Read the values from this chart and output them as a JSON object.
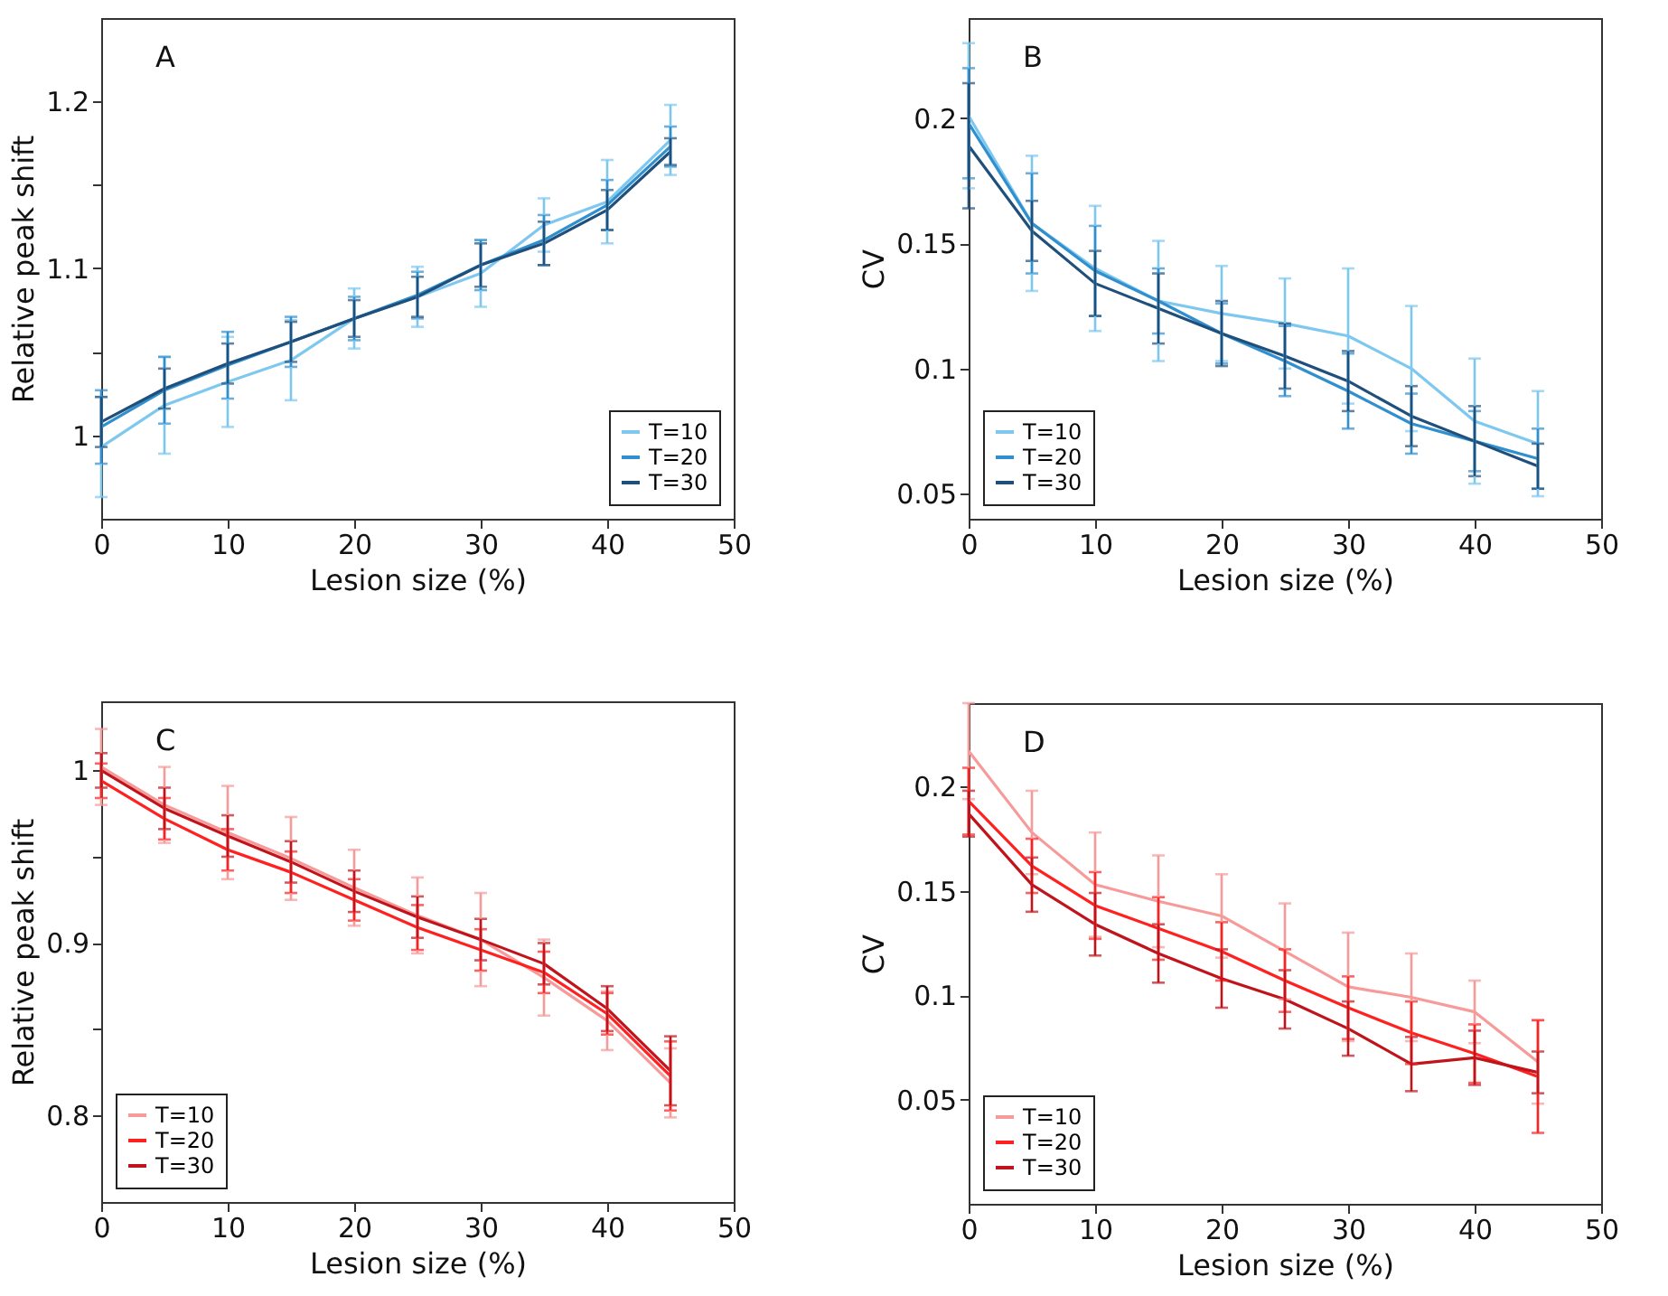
{
  "chart_data": [
    {
      "type": "line",
      "annotations": [
        "A"
      ],
      "xlabel": "Lesion size (%)",
      "ylabel": "Relative peak shift",
      "x": [
        0,
        5,
        10,
        15,
        20,
        25,
        30,
        35,
        40,
        45
      ],
      "xlim": [
        0,
        50
      ],
      "xticks": [
        0,
        10,
        20,
        30,
        40,
        50
      ],
      "ylim": [
        0.95,
        1.25
      ],
      "yticks": [
        1.0,
        {
          "value": 1.05,
          "label": null
        },
        1.1,
        {
          "value": 1.15,
          "label": null
        },
        1.2
      ],
      "grid": false,
      "legend": "bottom right",
      "marker": "none",
      "line_style": "solid",
      "series": [
        {
          "name": "T=10",
          "color": "#7ec8f0",
          "values": [
            0.993,
            1.018,
            1.032,
            1.045,
            1.07,
            1.083,
            1.097,
            1.126,
            1.14,
            1.177
          ],
          "errors": [
            0.03,
            0.029,
            0.027,
            0.024,
            0.018,
            0.018,
            0.02,
            0.016,
            0.025,
            0.021
          ]
        },
        {
          "name": "T=20",
          "color": "#2f8fcf",
          "values": [
            1.005,
            1.027,
            1.042,
            1.056,
            1.07,
            1.084,
            1.102,
            1.117,
            1.138,
            1.173
          ],
          "errors": [
            0.022,
            0.02,
            0.02,
            0.015,
            0.013,
            0.014,
            0.015,
            0.015,
            0.015,
            0.012
          ]
        },
        {
          "name": "T=30",
          "color": "#1f4f7a",
          "values": [
            1.008,
            1.028,
            1.043,
            1.056,
            1.07,
            1.083,
            1.102,
            1.115,
            1.135,
            1.17
          ],
          "errors": [
            0.015,
            0.012,
            0.012,
            0.012,
            0.011,
            0.012,
            0.013,
            0.013,
            0.012,
            0.008
          ]
        }
      ]
    },
    {
      "type": "line",
      "annotations": [
        "B"
      ],
      "xlabel": "Lesion size (%)",
      "ylabel": "CV",
      "x": [
        0,
        5,
        10,
        15,
        20,
        25,
        30,
        35,
        40,
        45
      ],
      "xlim": [
        0,
        50
      ],
      "xticks": [
        0,
        10,
        20,
        30,
        40,
        50
      ],
      "ylim": [
        0.04,
        0.24
      ],
      "yticks": [
        0.05,
        0.1,
        0.15,
        0.2
      ],
      "grid": false,
      "legend": "bottom left",
      "marker": "none",
      "line_style": "solid",
      "series": [
        {
          "name": "T=10",
          "color": "#7ec8f0",
          "values": [
            0.201,
            0.158,
            0.14,
            0.127,
            0.122,
            0.118,
            0.113,
            0.1,
            0.079,
            0.07
          ],
          "errors": [
            0.029,
            0.027,
            0.025,
            0.024,
            0.019,
            0.018,
            0.027,
            0.025,
            0.025,
            0.021
          ]
        },
        {
          "name": "T=20",
          "color": "#2f8fcf",
          "values": [
            0.198,
            0.158,
            0.139,
            0.127,
            0.114,
            0.103,
            0.091,
            0.078,
            0.071,
            0.064
          ],
          "errors": [
            0.022,
            0.02,
            0.018,
            0.013,
            0.012,
            0.014,
            0.015,
            0.012,
            0.012,
            0.012
          ]
        },
        {
          "name": "T=30",
          "color": "#1f4f7a",
          "values": [
            0.189,
            0.155,
            0.134,
            0.124,
            0.114,
            0.105,
            0.095,
            0.081,
            0.071,
            0.061
          ],
          "errors": [
            0.025,
            0.012,
            0.013,
            0.014,
            0.013,
            0.013,
            0.012,
            0.012,
            0.014,
            0.009
          ]
        }
      ]
    },
    {
      "type": "line",
      "annotations": [
        "C"
      ],
      "xlabel": "Lesion size (%)",
      "ylabel": "Relative peak shift",
      "x": [
        0,
        5,
        10,
        15,
        20,
        25,
        30,
        35,
        40,
        45
      ],
      "xlim": [
        0,
        50
      ],
      "xticks": [
        0,
        10,
        20,
        30,
        40,
        50
      ],
      "ylim": [
        0.75,
        1.04
      ],
      "yticks": [
        0.8,
        {
          "value": 0.85,
          "label": null
        },
        0.9,
        {
          "value": 0.95,
          "label": null
        },
        1.0
      ],
      "grid": false,
      "legend": "bottom left",
      "marker": "none",
      "line_style": "solid",
      "series": [
        {
          "name": "T=10",
          "color": "#f79a9a",
          "values": [
            1.002,
            0.98,
            0.964,
            0.949,
            0.932,
            0.916,
            0.902,
            0.88,
            0.855,
            0.819
          ],
          "errors": [
            0.022,
            0.022,
            0.027,
            0.024,
            0.022,
            0.022,
            0.027,
            0.022,
            0.017,
            0.02
          ]
        },
        {
          "name": "T=20",
          "color": "#ff2020",
          "values": [
            0.994,
            0.972,
            0.954,
            0.941,
            0.925,
            0.909,
            0.896,
            0.883,
            0.859,
            0.823
          ],
          "errors": [
            0.01,
            0.012,
            0.012,
            0.012,
            0.012,
            0.013,
            0.012,
            0.012,
            0.012,
            0.02
          ]
        },
        {
          "name": "T=30",
          "color": "#c0141c",
          "values": [
            1.0,
            0.978,
            0.962,
            0.947,
            0.93,
            0.915,
            0.902,
            0.888,
            0.862,
            0.826
          ],
          "errors": [
            0.01,
            0.012,
            0.012,
            0.012,
            0.012,
            0.012,
            0.012,
            0.012,
            0.013,
            0.02
          ]
        }
      ]
    },
    {
      "type": "line",
      "annotations": [
        "D"
      ],
      "xlabel": "Lesion size (%)",
      "ylabel": "CV",
      "x": [
        0,
        5,
        10,
        15,
        20,
        25,
        30,
        35,
        40,
        45
      ],
      "xlim": [
        0,
        50
      ],
      "xticks": [
        0,
        10,
        20,
        30,
        40,
        50
      ],
      "ylim": [
        0.0,
        0.24
      ],
      "yticks": [
        0.05,
        0.1,
        0.15,
        0.2
      ],
      "grid": false,
      "legend": "bottom left",
      "marker": "none",
      "line_style": "solid",
      "series": [
        {
          "name": "T=10",
          "color": "#f79a9a",
          "values": [
            0.217,
            0.178,
            0.153,
            0.145,
            0.138,
            0.121,
            0.104,
            0.099,
            0.092,
            0.068
          ],
          "errors": [
            0.023,
            0.02,
            0.025,
            0.022,
            0.02,
            0.023,
            0.026,
            0.021,
            0.015,
            0.02
          ]
        },
        {
          "name": "T=20",
          "color": "#ff2020",
          "values": [
            0.193,
            0.162,
            0.143,
            0.132,
            0.121,
            0.107,
            0.094,
            0.082,
            0.072,
            0.061
          ],
          "errors": [
            0.016,
            0.013,
            0.016,
            0.015,
            0.014,
            0.015,
            0.015,
            0.015,
            0.014,
            0.027
          ]
        },
        {
          "name": "T=30",
          "color": "#c0141c",
          "values": [
            0.187,
            0.153,
            0.134,
            0.12,
            0.108,
            0.098,
            0.084,
            0.067,
            0.07,
            0.063
          ],
          "errors": [
            0.011,
            0.013,
            0.015,
            0.014,
            0.014,
            0.014,
            0.013,
            0.013,
            0.013,
            0.01
          ]
        }
      ]
    }
  ]
}
